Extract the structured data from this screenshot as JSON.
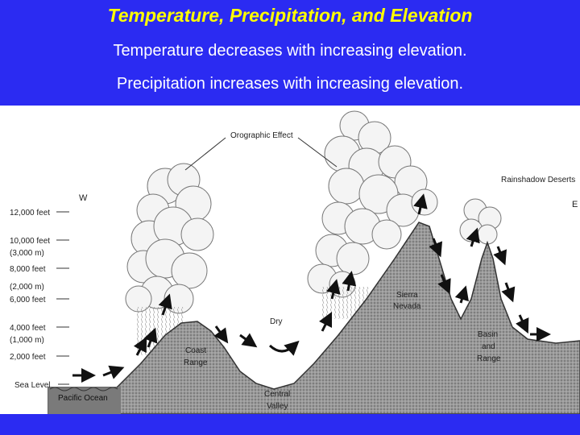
{
  "title": "Temperature, Precipitation, and Elevation",
  "statements": [
    "Temperature decreases with increasing elevation.",
    "Precipitation increases with increasing elevation."
  ],
  "diagram": {
    "orographic_label": "Orographic Effect",
    "rainshadow_label": "Rainshadow Deserts",
    "west_label": "W",
    "east_label": "E",
    "dry_label": "Dry",
    "elevation_labels": [
      "12,000 feet",
      "10,000 feet",
      "(3,000 m)",
      "8,000 feet",
      "(2,000 m)",
      "6,000 feet",
      "4,000 feet",
      "(1,000 m)",
      "2,000 feet",
      "Sea Level"
    ],
    "places": {
      "pacific_ocean": "Pacific Ocean",
      "coast_range": [
        "Coast",
        "Range"
      ],
      "central_valley": [
        "Central",
        "Valley"
      ],
      "sierra_nevada": [
        "Sierra",
        "Nevada"
      ],
      "basin_range": [
        "Basin",
        "and",
        "Range"
      ]
    }
  }
}
